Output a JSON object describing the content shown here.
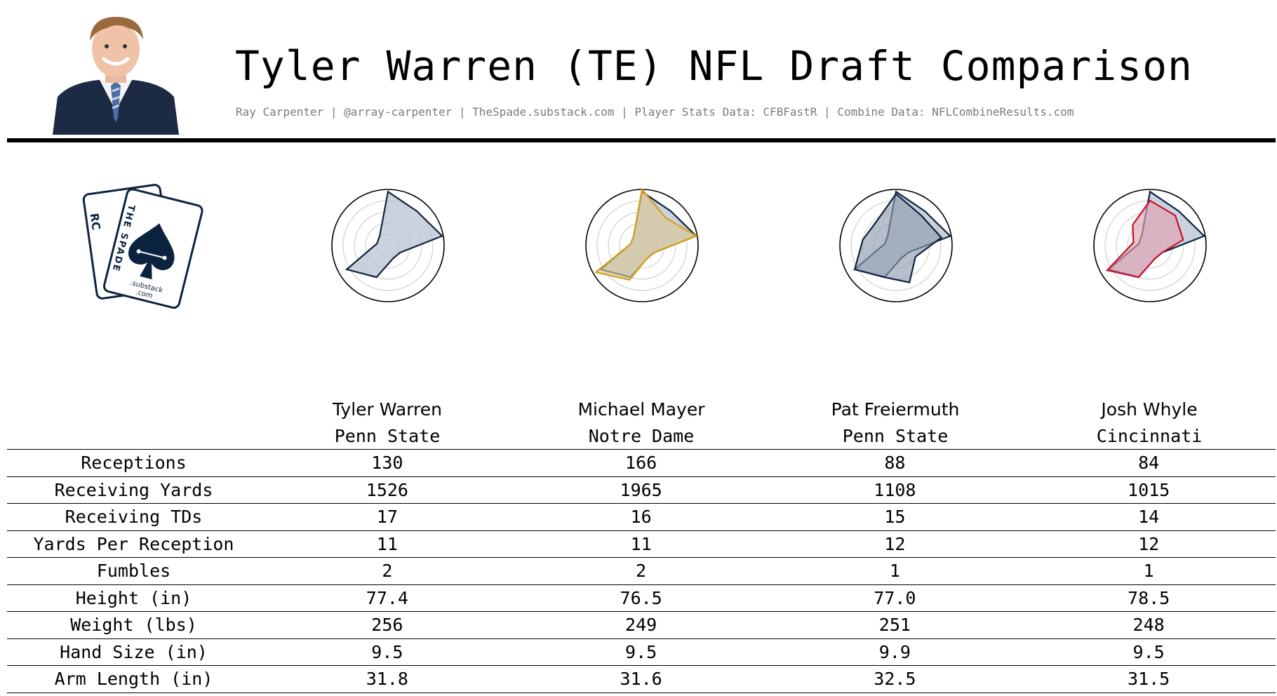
{
  "header": {
    "title": "Tyler Warren (TE) NFL Draft Comparison",
    "subtitle": "Ray Carpenter | @array-carpenter | TheSpade.substack.com | Player Stats Data: CFBFastR | Combine Data: NFLCombineResults.com"
  },
  "logo": {
    "card_letters_back": "RC",
    "card_letters_front": "THE SPADE",
    "text1": ".substack",
    "text2": ".com",
    "icon": "spade-icon"
  },
  "colors": {
    "navy": "#0c2340",
    "gold": "#d4a017",
    "red": "#c8102e",
    "fill_navy": "#b9c3d1",
    "fill_gold": "#d9c896",
    "fill_red": "#e0a3b4"
  },
  "chart_data": {
    "type": "radar",
    "grid": true,
    "rmax": 1,
    "ring_levels": [
      0.2,
      0.4,
      0.6,
      0.8,
      1.0
    ],
    "axes": [
      "Receptions",
      "Receiving Yards",
      "Receiving TDs",
      "Yards Per Reception",
      "Fumbles",
      "Height (in)",
      "Weight (lbs)",
      "Hand Size (in)",
      "Arm Length (in)"
    ],
    "base": {
      "name": "Tyler Warren",
      "color": "#0c2340",
      "values": [
        0.96,
        0.8,
        0.98,
        0.25,
        0.25,
        0.6,
        0.85,
        0.2,
        0.23
      ]
    },
    "comparisons": [
      {
        "name": "Tyler Warren",
        "color": "#0c2340",
        "fill": "#b9c3d1",
        "values": [
          0.96,
          0.8,
          0.98,
          0.25,
          0.25,
          0.6,
          0.85,
          0.2,
          0.23
        ]
      },
      {
        "name": "Michael Mayer",
        "color": "#d4a017",
        "fill": "#d9c896",
        "values": [
          1.0,
          0.65,
          0.98,
          0.25,
          0.25,
          0.65,
          0.95,
          0.2,
          0.23
        ]
      },
      {
        "name": "Pat Freiermuth",
        "color": "#0c2340",
        "fill": "#8f9cad",
        "values": [
          0.92,
          0.7,
          0.82,
          0.4,
          0.7,
          0.6,
          0.85,
          0.6,
          0.55
        ]
      },
      {
        "name": "Josh Whyle",
        "color": "#c8102e",
        "fill": "#e0a3b4",
        "values": [
          0.8,
          0.7,
          0.6,
          0.25,
          0.25,
          0.6,
          0.88,
          0.3,
          0.48
        ]
      }
    ]
  },
  "players": [
    {
      "name": "Tyler Warren",
      "school": "Penn State"
    },
    {
      "name": "Michael Mayer",
      "school": "Notre Dame"
    },
    {
      "name": "Pat Freiermuth",
      "school": "Penn State"
    },
    {
      "name": "Josh Whyle",
      "school": "Cincinnati"
    }
  ],
  "table": {
    "rows": [
      {
        "label": "Receptions",
        "values": [
          "130",
          "166",
          "88",
          "84"
        ]
      },
      {
        "label": "Receiving Yards",
        "values": [
          "1526",
          "1965",
          "1108",
          "1015"
        ]
      },
      {
        "label": "Receiving TDs",
        "values": [
          "17",
          "16",
          "15",
          "14"
        ]
      },
      {
        "label": "Yards Per Reception",
        "values": [
          "11",
          "11",
          "12",
          "12"
        ]
      },
      {
        "label": "Fumbles",
        "values": [
          "2",
          "2",
          "1",
          "1"
        ]
      },
      {
        "label": "Height (in)",
        "values": [
          "77.4",
          "76.5",
          "77.0",
          "78.5"
        ]
      },
      {
        "label": "Weight (lbs)",
        "values": [
          "256",
          "249",
          "251",
          "248"
        ]
      },
      {
        "label": "Hand Size (in)",
        "values": [
          "9.5",
          "9.5",
          "9.9",
          "9.5"
        ]
      },
      {
        "label": "Arm Length (in)",
        "values": [
          "31.8",
          "31.6",
          "32.5",
          "31.5"
        ]
      }
    ]
  }
}
